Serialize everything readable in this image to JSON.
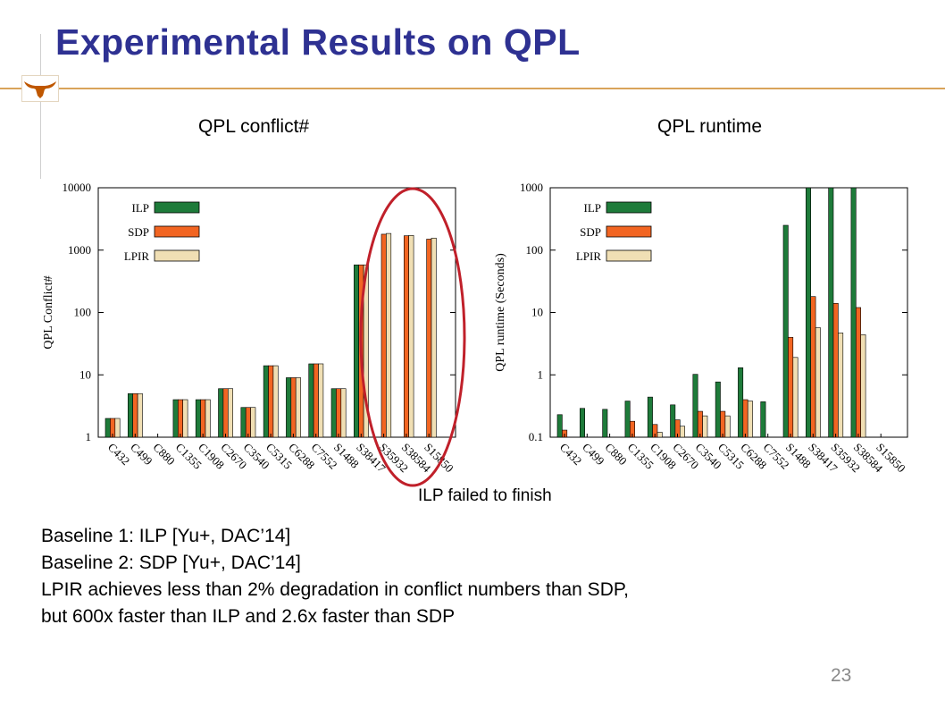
{
  "slide": {
    "title": "Experimental Results on QPL",
    "annotation": "ILP failed to finish",
    "lines": [
      "Baseline 1: ILP [Yu+, DAC’14]",
      "Baseline 2: SDP [Yu+, DAC’14]",
      "LPIR achieves less than 2% degradation in conflict numbers than SDP,",
      "but 600x faster than ILP and 2.6x faster than SDP"
    ],
    "page_number": "23"
  },
  "colors": {
    "title": "#2e3192",
    "ILP": "#1e7b3a",
    "SDP": "#f26522",
    "LPIR": "#f0dfb4",
    "highlight_ellipse": "#c0202a"
  },
  "chart_data": [
    {
      "type": "bar",
      "title": "QPL conflict#",
      "ylabel": "QPL Conflict#",
      "yscale": "log",
      "ylim": [
        1,
        10000
      ],
      "yticks": [
        "1",
        "10",
        "100",
        "1000",
        "10000"
      ],
      "legend_position": "top-left",
      "categories": [
        "C432",
        "C499",
        "C880",
        "C1355",
        "C1908",
        "C2670",
        "C3540",
        "C5315",
        "C6288",
        "C7552",
        "S1488",
        "S38417",
        "S35932",
        "S38584",
        "S15850"
      ],
      "series": [
        {
          "name": "ILP",
          "values": [
            2,
            5,
            null,
            4,
            4,
            6,
            3,
            14,
            9,
            15,
            6,
            580,
            null,
            null,
            null
          ]
        },
        {
          "name": "SDP",
          "values": [
            2,
            5,
            null,
            4,
            4,
            6,
            3,
            14,
            9,
            15,
            6,
            580,
            1800,
            1700,
            1500
          ]
        },
        {
          "name": "LPIR",
          "values": [
            2,
            5,
            null,
            4,
            4,
            6,
            3,
            14,
            9,
            15,
            6,
            580,
            1850,
            1720,
            1560
          ]
        }
      ]
    },
    {
      "type": "bar",
      "title": "QPL runtime",
      "ylabel": "QPL runtime (Seconds)",
      "yscale": "log",
      "ylim": [
        0.1,
        1000
      ],
      "yticks": [
        "0.1",
        "1",
        "10",
        "100",
        "1000"
      ],
      "legend_position": "top-left",
      "categories": [
        "C432",
        "C499",
        "C880",
        "C1355",
        "C1908",
        "C2670",
        "C3540",
        "C5315",
        "C6288",
        "C7552",
        "S1488",
        "S38417",
        "S35932",
        "S38584",
        "S15850"
      ],
      "series": [
        {
          "name": "ILP",
          "values": [
            0.23,
            0.29,
            0.28,
            0.38,
            0.44,
            0.33,
            1.02,
            0.77,
            1.3,
            0.37,
            250,
            1000,
            1000,
            1000,
            null
          ]
        },
        {
          "name": "SDP",
          "values": [
            0.13,
            null,
            null,
            0.18,
            0.16,
            0.19,
            0.26,
            0.26,
            0.4,
            null,
            4.0,
            18,
            14,
            12,
            null
          ]
        },
        {
          "name": "LPIR",
          "values": [
            null,
            null,
            null,
            null,
            0.12,
            0.15,
            0.22,
            0.22,
            0.38,
            null,
            1.9,
            5.7,
            4.7,
            4.4,
            null
          ]
        }
      ]
    }
  ]
}
